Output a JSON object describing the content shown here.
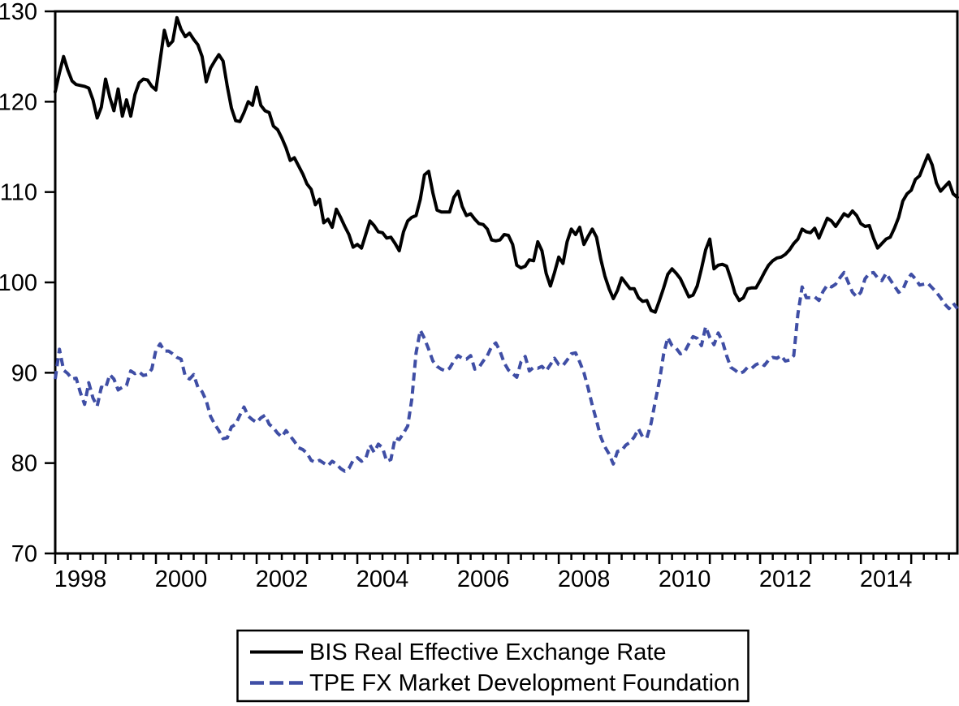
{
  "chart_data": {
    "type": "line",
    "title": "",
    "xlabel": "",
    "ylabel": "",
    "ylim": [
      70,
      130
    ],
    "yticks": [
      "70",
      "80",
      "90",
      "100",
      "110",
      "120",
      "130"
    ],
    "grid": false,
    "x_axis": {
      "unit": "monthly",
      "start_year": 1998,
      "end_year_inclusive": 2015,
      "minor_tick_interval_months": 3,
      "major_tick_interval_months": 12,
      "labeled_years": [
        "1998",
        "2000",
        "2002",
        "2004",
        "2006",
        "2008",
        "2010",
        "2012",
        "2014"
      ]
    },
    "legend": {
      "position": "bottom-center",
      "boxed": true
    },
    "series": [
      {
        "name": "BIS Real Effective Exchange Rate",
        "line_style": "solid",
        "color": "#000000",
        "values": [
          121.1,
          123.2,
          125.0,
          123.5,
          122.3,
          121.9,
          121.8,
          121.7,
          121.5,
          120.2,
          118.2,
          119.4,
          122.5,
          120.5,
          119.0,
          121.4,
          118.4,
          120.2,
          118.4,
          120.8,
          122.1,
          122.5,
          122.4,
          121.7,
          121.3,
          124.6,
          127.9,
          126.2,
          126.7,
          129.3,
          128.0,
          127.2,
          127.6,
          126.9,
          126.3,
          125.0,
          122.2,
          123.7,
          124.5,
          125.2,
          124.5,
          121.7,
          119.3,
          117.9,
          117.8,
          118.8,
          120.0,
          119.6,
          121.6,
          119.6,
          119.0,
          118.8,
          117.3,
          116.9,
          116.0,
          114.9,
          113.5,
          113.8,
          112.9,
          112.0,
          110.9,
          110.3,
          108.6,
          109.2,
          106.6,
          107.0,
          106.1,
          108.1,
          107.2,
          106.2,
          105.3,
          103.9,
          104.2,
          103.8,
          105.3,
          106.8,
          106.3,
          105.6,
          105.5,
          104.9,
          105.0,
          104.3,
          103.5,
          105.6,
          106.8,
          107.2,
          107.4,
          109.2,
          111.9,
          112.3,
          109.9,
          108.0,
          107.8,
          107.8,
          107.8,
          109.4,
          110.1,
          108.4,
          107.4,
          107.6,
          107.0,
          106.5,
          106.4,
          105.9,
          104.7,
          104.6,
          104.7,
          105.3,
          105.2,
          104.2,
          101.9,
          101.6,
          101.8,
          102.5,
          102.4,
          104.5,
          103.5,
          101.0,
          99.6,
          101.1,
          102.8,
          102.1,
          104.5,
          105.9,
          105.3,
          106.1,
          104.2,
          105.1,
          105.9,
          105.0,
          102.6,
          100.7,
          99.3,
          98.2,
          99.1,
          100.5,
          99.9,
          99.3,
          99.3,
          98.3,
          97.9,
          98.0,
          96.9,
          96.7,
          98.0,
          99.4,
          100.9,
          101.5,
          101.0,
          100.4,
          99.4,
          98.4,
          98.6,
          99.6,
          101.5,
          103.6,
          104.8,
          101.5,
          101.9,
          102.0,
          101.8,
          100.4,
          98.8,
          98.0,
          98.3,
          99.3,
          99.4,
          99.4,
          100.2,
          101.1,
          101.9,
          102.4,
          102.7,
          102.8,
          103.1,
          103.6,
          104.3,
          104.8,
          105.9,
          105.6,
          105.5,
          106.0,
          104.9,
          106.0,
          107.1,
          106.8,
          106.2,
          106.9,
          107.6,
          107.3,
          107.9,
          107.4,
          106.5,
          106.2,
          106.3,
          104.9,
          103.8,
          104.3,
          104.8,
          105.0,
          106.0,
          107.2,
          109.0,
          109.8,
          110.2,
          111.4,
          111.8,
          113.0,
          114.1,
          113.0,
          111.0,
          110.1,
          110.6,
          111.1,
          109.8,
          109.4
        ]
      },
      {
        "name": "TPE FX Market Development Foundation",
        "line_style": "dashed",
        "color": "#3F4EA5",
        "values": [
          89.3,
          92.6,
          90.3,
          89.9,
          89.3,
          89.4,
          87.8,
          86.5,
          88.9,
          87.2,
          86.3,
          88.4,
          88.3,
          89.8,
          89.3,
          88.1,
          88.4,
          88.6,
          90.2,
          89.9,
          90.1,
          89.7,
          89.8,
          90.4,
          92.5,
          93.2,
          92.4,
          92.4,
          92.1,
          91.7,
          91.5,
          89.6,
          89.3,
          89.8,
          88.4,
          87.9,
          86.9,
          85.2,
          84.3,
          83.6,
          82.7,
          82.8,
          84.0,
          84.3,
          85.3,
          86.2,
          85.2,
          84.8,
          84.5,
          85.0,
          85.3,
          84.3,
          83.9,
          83.3,
          82.9,
          83.6,
          83.0,
          82.4,
          81.7,
          81.5,
          81.1,
          80.3,
          80.1,
          80.3,
          80.0,
          79.7,
          80.2,
          79.9,
          79.4,
          79.1,
          79.4,
          80.3,
          80.6,
          80.2,
          80.5,
          82.0,
          81.2,
          82.1,
          81.7,
          80.2,
          80.4,
          82.8,
          82.6,
          83.3,
          84.1,
          87.1,
          92.2,
          94.7,
          93.8,
          92.6,
          91.3,
          90.7,
          90.4,
          90.2,
          90.5,
          91.3,
          91.9,
          91.6,
          91.5,
          91.9,
          90.4,
          90.6,
          91.3,
          91.9,
          92.9,
          93.3,
          92.4,
          91.1,
          90.3,
          89.9,
          89.5,
          91.2,
          91.8,
          90.2,
          90.6,
          90.5,
          90.7,
          90.2,
          90.9,
          91.6,
          90.9,
          90.8,
          91.4,
          92.1,
          92.2,
          91.2,
          90.0,
          88.3,
          86.4,
          84.7,
          82.9,
          81.8,
          81.0,
          79.9,
          81.3,
          81.4,
          82.0,
          82.3,
          82.9,
          83.8,
          82.9,
          82.8,
          84.4,
          86.8,
          89.1,
          92.1,
          93.9,
          93.0,
          92.7,
          92.1,
          92.3,
          93.2,
          94.0,
          93.8,
          93.0,
          95.1,
          93.9,
          93.1,
          94.4,
          93.5,
          91.9,
          90.6,
          90.3,
          89.9,
          90.1,
          90.6,
          90.5,
          90.9,
          91.1,
          90.8,
          91.4,
          91.7,
          91.6,
          91.9,
          91.3,
          91.4,
          91.9,
          96.5,
          99.5,
          98.3,
          98.3,
          98.4,
          98.0,
          99.0,
          99.7,
          99.5,
          99.8,
          100.5,
          101.1,
          100.0,
          98.9,
          98.4,
          98.9,
          100.4,
          101.0,
          101.1,
          100.5,
          100.2,
          101.0,
          100.3,
          99.6,
          98.9,
          99.2,
          100.3,
          100.9,
          100.4,
          99.7,
          99.8,
          99.9,
          99.4,
          98.9,
          98.3,
          97.6,
          97.1,
          97.7,
          97.1
        ]
      }
    ]
  },
  "colors": {
    "background": "#FFFFFF",
    "axis": "#000000",
    "series_bis": "#000000",
    "series_tpe": "#3F4EA5"
  }
}
